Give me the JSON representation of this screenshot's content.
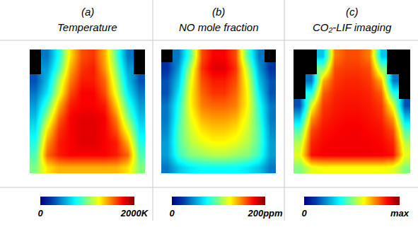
{
  "chart_data": [
    {
      "type": "heatmap",
      "panel": "(a)",
      "title": "Temperature",
      "color": "Jet",
      "tick_labels": false,
      "colorbar_range": [
        0,
        2000
      ],
      "colorbar_ticks": [
        0,
        {
          "value": 2000,
          "label": "2000K"
        }
      ],
      "cells": [
        [
          null,
          400,
          800,
          1300,
          1600,
          1650,
          1400,
          900,
          400,
          null
        ],
        [
          null,
          500,
          900,
          1400,
          1650,
          1700,
          1450,
          1000,
          500,
          null
        ],
        [
          300,
          600,
          1100,
          1500,
          1700,
          1700,
          1550,
          1100,
          600,
          300
        ],
        [
          400,
          700,
          1200,
          1600,
          1750,
          1750,
          1600,
          1200,
          700,
          400
        ],
        [
          500,
          900,
          1400,
          1700,
          1750,
          1750,
          1700,
          1350,
          850,
          500
        ],
        [
          600,
          1100,
          1550,
          1750,
          1800,
          1800,
          1750,
          1500,
          1000,
          600
        ],
        [
          700,
          1300,
          1650,
          1750,
          1800,
          1800,
          1750,
          1600,
          1200,
          700
        ],
        [
          800,
          1450,
          1700,
          1750,
          1800,
          1800,
          1750,
          1700,
          1400,
          800
        ],
        [
          900,
          1550,
          1700,
          1750,
          1750,
          1750,
          1750,
          1700,
          1550,
          900
        ],
        [
          1000,
          1300,
          1400,
          1400,
          1400,
          1400,
          1400,
          1400,
          1300,
          1000
        ]
      ]
    },
    {
      "type": "heatmap",
      "panel": "(b)",
      "title": "NO mole fraction",
      "color": "Jet",
      "tick_labels": false,
      "colorbar_range": [
        0,
        200
      ],
      "colorbar_ticks": [
        0,
        {
          "value": 200,
          "label": "200ppm"
        }
      ],
      "cells": [
        [
          null,
          40,
          90,
          160,
          175,
          175,
          160,
          90,
          40,
          null
        ],
        [
          20,
          50,
          110,
          165,
          180,
          180,
          165,
          110,
          50,
          20
        ],
        [
          30,
          60,
          120,
          160,
          170,
          170,
          160,
          120,
          60,
          30
        ],
        [
          30,
          70,
          125,
          155,
          165,
          165,
          155,
          125,
          70,
          30
        ],
        [
          40,
          80,
          125,
          150,
          155,
          155,
          150,
          125,
          80,
          40
        ],
        [
          40,
          85,
          120,
          140,
          145,
          145,
          140,
          120,
          85,
          40
        ],
        [
          45,
          90,
          115,
          130,
          135,
          135,
          130,
          115,
          90,
          45
        ],
        [
          50,
          90,
          110,
          120,
          125,
          125,
          120,
          110,
          90,
          50
        ],
        [
          50,
          85,
          100,
          105,
          110,
          110,
          105,
          100,
          85,
          50
        ],
        [
          40,
          60,
          70,
          75,
          75,
          75,
          75,
          70,
          60,
          40
        ]
      ]
    },
    {
      "type": "heatmap",
      "panel": "(c)",
      "title": "CO₂-LIF imaging",
      "color": "Jet",
      "tick_labels": false,
      "colorbar_range": [
        0,
        1
      ],
      "colorbar_ticks": [
        0,
        {
          "value": 1,
          "label": "max"
        }
      ],
      "cells": [
        [
          null,
          null,
          0.3,
          0.75,
          0.8,
          0.8,
          0.75,
          0.3,
          null,
          null
        ],
        [
          null,
          null,
          0.5,
          0.8,
          0.82,
          0.82,
          0.8,
          0.5,
          null,
          null
        ],
        [
          null,
          0.2,
          0.7,
          0.82,
          0.84,
          0.84,
          0.82,
          0.7,
          0.2,
          null
        ],
        [
          null,
          0.4,
          0.78,
          0.84,
          0.85,
          0.85,
          0.84,
          0.78,
          0.4,
          null
        ],
        [
          0.15,
          0.6,
          0.82,
          0.85,
          0.86,
          0.86,
          0.85,
          0.82,
          0.6,
          0.15
        ],
        [
          0.3,
          0.72,
          0.84,
          0.86,
          0.87,
          0.87,
          0.86,
          0.84,
          0.72,
          0.3
        ],
        [
          0.45,
          0.8,
          0.86,
          0.87,
          0.88,
          0.88,
          0.87,
          0.86,
          0.8,
          0.45
        ],
        [
          0.55,
          0.84,
          0.87,
          0.88,
          0.88,
          0.88,
          0.88,
          0.87,
          0.84,
          0.55
        ],
        [
          0.6,
          0.86,
          0.88,
          0.88,
          0.88,
          0.88,
          0.88,
          0.88,
          0.86,
          0.6
        ],
        [
          0.5,
          0.6,
          0.62,
          0.62,
          0.62,
          0.62,
          0.62,
          0.62,
          0.6,
          0.5
        ]
      ]
    }
  ]
}
